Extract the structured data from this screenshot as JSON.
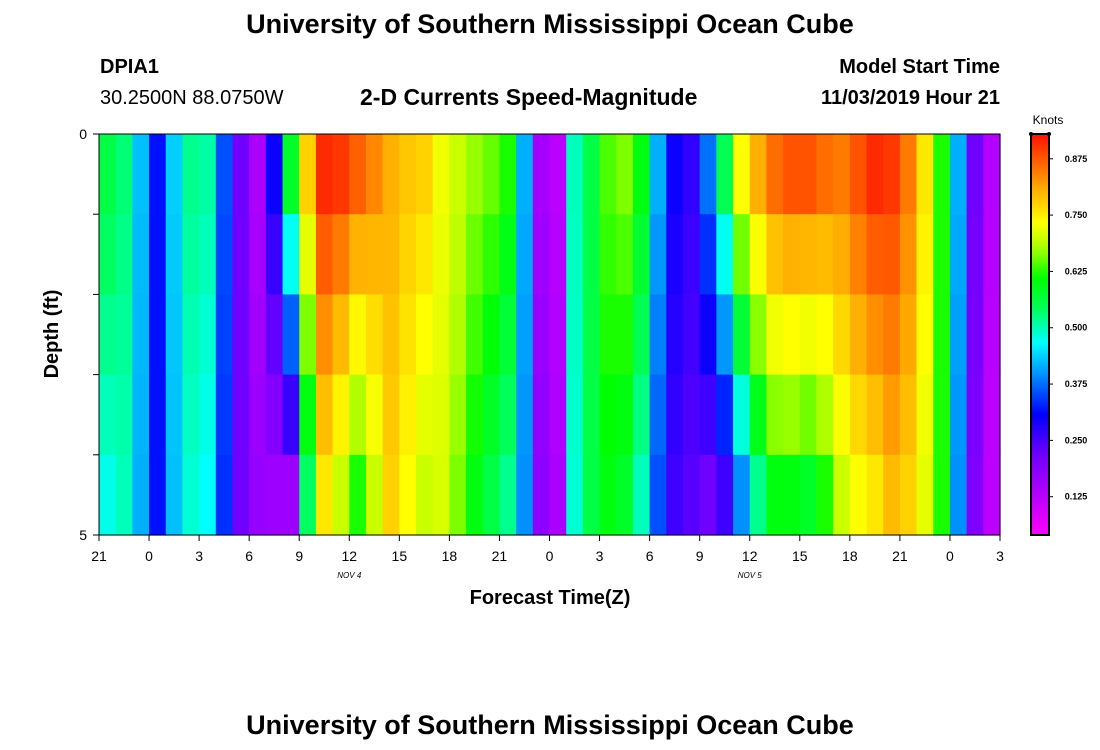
{
  "header": {
    "title": "University of Southern Mississippi Ocean Cube",
    "station_id": "DPIA1",
    "station_coords": "30.2500N 88.0750W",
    "chart_subtitle": "2-D Currents Speed-Magnitude",
    "model_label": "Model Start Time",
    "model_time": "11/03/2019 Hour 21"
  },
  "footer": {
    "title": "University of Southern Mississippi Ocean Cube"
  },
  "chart_data": {
    "type": "heatmap",
    "title": "2-D Currents Speed-Magnitude",
    "xlabel": "Forecast Time(Z)",
    "ylabel": "Depth (ft)",
    "colorbar_label": "Knots",
    "x_ticks": [
      "21",
      "0",
      "3",
      "6",
      "9",
      "12",
      "15",
      "18",
      "21",
      "0",
      "3",
      "6",
      "9",
      "12",
      "15",
      "18",
      "21",
      "0",
      "3"
    ],
    "x_range_hours": [
      0,
      54
    ],
    "date_labels": [
      {
        "text": "NOV 4",
        "hour": 15
      },
      {
        "text": "NOV 5",
        "hour": 39
      }
    ],
    "y_ticks": [
      "0",
      "",
      "",
      "",
      "",
      "5"
    ],
    "ylim": [
      0,
      5
    ],
    "depth_levels": 5,
    "colorbar_ticks": [
      "0.125",
      "0.250",
      "0.375",
      "0.500",
      "0.625",
      "0.750",
      "0.875"
    ],
    "colorbar_range": [
      0.04,
      0.93
    ],
    "surface_speed_knots": [
      0.56,
      0.53,
      0.43,
      0.32,
      0.44,
      0.52,
      0.51,
      0.36,
      0.22,
      0.14,
      0.3,
      0.58,
      0.78,
      0.91,
      0.9,
      0.87,
      0.84,
      0.81,
      0.79,
      0.78,
      0.73,
      0.7,
      0.67,
      0.65,
      0.62,
      0.42,
      0.15,
      0.12,
      0.5,
      0.56,
      0.64,
      0.66,
      0.6,
      0.42,
      0.3,
      0.27,
      0.38,
      0.55,
      0.74,
      0.81,
      0.86,
      0.88,
      0.88,
      0.86,
      0.85,
      0.88,
      0.91,
      0.9,
      0.85,
      0.76,
      0.62,
      0.42,
      0.22,
      0.13
    ],
    "bottom_speed_knots": [
      0.48,
      0.5,
      0.42,
      0.32,
      0.43,
      0.49,
      0.47,
      0.34,
      0.22,
      0.17,
      0.16,
      0.16,
      0.54,
      0.76,
      0.7,
      0.62,
      0.7,
      0.78,
      0.74,
      0.7,
      0.71,
      0.66,
      0.6,
      0.56,
      0.52,
      0.4,
      0.18,
      0.14,
      0.49,
      0.56,
      0.6,
      0.58,
      0.5,
      0.36,
      0.26,
      0.24,
      0.22,
      0.26,
      0.4,
      0.52,
      0.6,
      0.6,
      0.58,
      0.62,
      0.7,
      0.74,
      0.76,
      0.8,
      0.78,
      0.72,
      0.62,
      0.4,
      0.2,
      0.12
    ],
    "front_hours_by_depth": [
      {
        "ramp_up": 8.6,
        "ramp_down": 32.6
      },
      {
        "ramp_up": 8.3,
        "ramp_down": 32.6
      },
      {
        "ramp_up": 8.0,
        "ramp_down": 32.8
      },
      {
        "ramp_up": 8.3,
        "ramp_down": 33.0
      },
      {
        "ramp_up": 8.6,
        "ramp_down": 33.3
      }
    ]
  }
}
